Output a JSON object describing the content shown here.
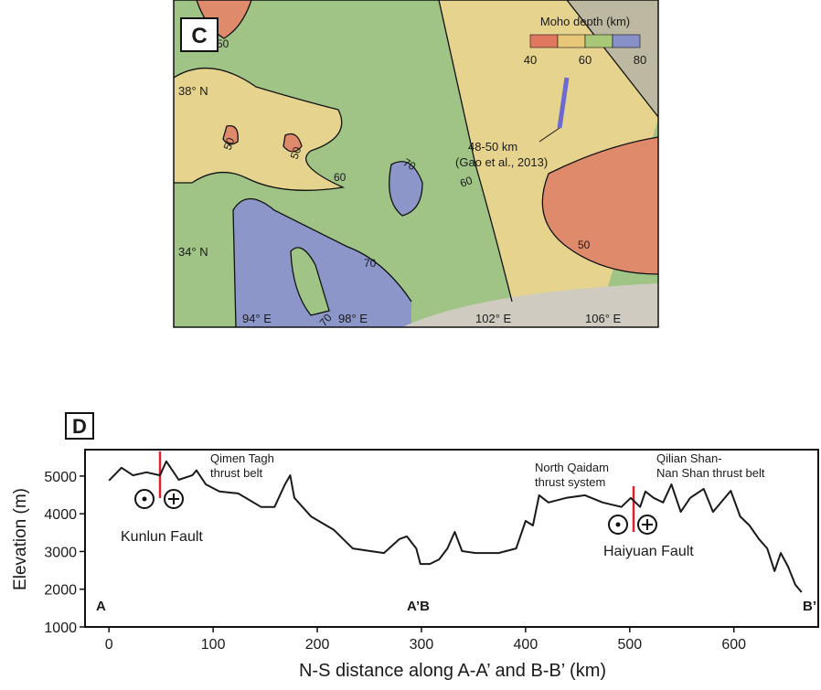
{
  "map": {
    "panel": "C",
    "legend_title": "Moho depth (km)",
    "legend_ticks": [
      40,
      60,
      80
    ],
    "lat_labels": [
      "38° N",
      "34° N"
    ],
    "lon_labels": [
      "94° E",
      "98° E",
      "102° E",
      "106° E"
    ],
    "contour_labels": [
      "50",
      "50",
      "50",
      "60",
      "70",
      "60",
      "70",
      "70",
      "50"
    ],
    "annotation": [
      "48-50 km",
      "(Gao et al., 2013)"
    ]
  },
  "chart_data": {
    "type": "line",
    "panel": "D",
    "x_label": "N-S distance along A-A’ and B-B’ (km)",
    "y_label": "Elevation (m)",
    "x": [
      0,
      12,
      23,
      36,
      49,
      55,
      67,
      80,
      84,
      93,
      106,
      124,
      146,
      159,
      169,
      174,
      178,
      194,
      216,
      234,
      251,
      264,
      279,
      286,
      295,
      299,
      308,
      317,
      325,
      332,
      339,
      352,
      374,
      391,
      400,
      407,
      413,
      422,
      439,
      457,
      474,
      492,
      501,
      510,
      515,
      523,
      532,
      540,
      549,
      558,
      571,
      580,
      597,
      606,
      615,
      624,
      632,
      639,
      645,
      652,
      659,
      665
    ],
    "values": [
      4880,
      5220,
      5020,
      5100,
      5020,
      5390,
      4900,
      5020,
      5150,
      4780,
      4590,
      4540,
      4180,
      4180,
      4780,
      5020,
      4420,
      3930,
      3570,
      3080,
      3010,
      2960,
      3330,
      3400,
      3080,
      2670,
      2670,
      2790,
      3080,
      3520,
      3010,
      2960,
      2960,
      3080,
      3810,
      3690,
      4490,
      4300,
      4420,
      4490,
      4300,
      4180,
      4420,
      4180,
      4590,
      4420,
      4300,
      4780,
      4050,
      4420,
      4660,
      4050,
      4610,
      3930,
      3690,
      3330,
      3080,
      2480,
      2960,
      2600,
      2120,
      1920
    ],
    "color": "#1a1a1a",
    "xlim": [
      -23,
      681
    ],
    "ylim": [
      1000,
      5700
    ],
    "xticks": [
      0,
      100,
      200,
      300,
      400,
      500,
      600
    ],
    "yticks": [
      1000,
      2000,
      3000,
      4000,
      5000
    ],
    "section_labels": [
      "A",
      "A’B",
      "B’"
    ],
    "annotations": [
      "Qimen Tagh",
      "thrust belt",
      "North Qaidam",
      "thrust system",
      "Qilian Shan-",
      "Nan Shan thrust belt",
      "Kunlun Fault",
      "Haiyuan Fault"
    ]
  }
}
